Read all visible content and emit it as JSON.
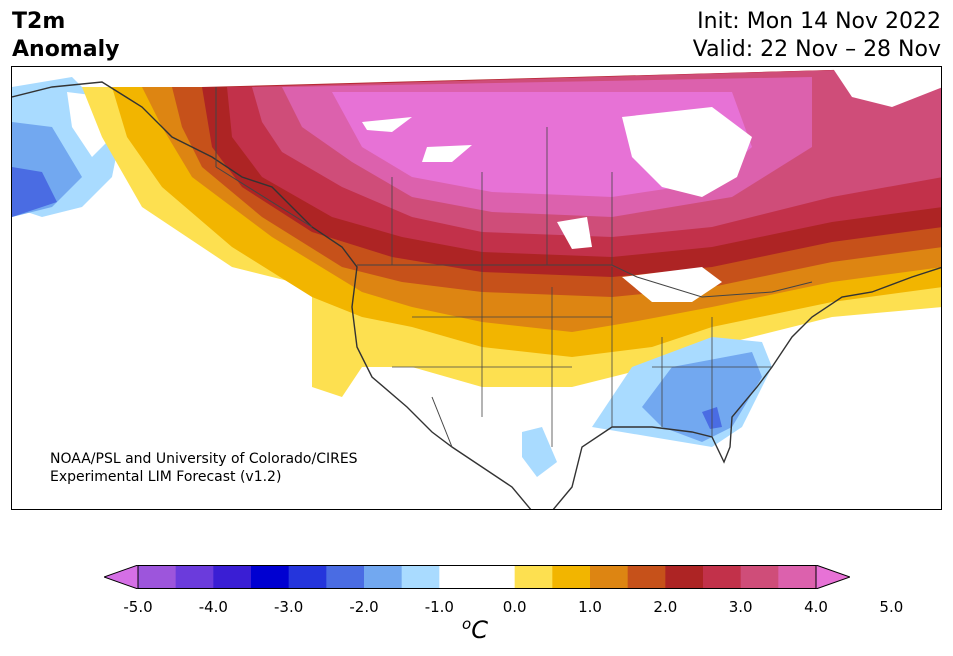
{
  "header": {
    "title_line1": "T2m",
    "title_line2": "Anomaly",
    "init": "Init: Mon 14 Nov 2022",
    "valid": "Valid: 22 Nov – 28 Nov"
  },
  "map": {
    "credit_line1": "NOAA/PSL and University of Colorado/CIRES",
    "credit_line2": "Experimental LIM Forecast (v1.2)"
  },
  "colorbar": {
    "unit_base": "C",
    "unit_sup": "o",
    "tick_labels": [
      "-5.0",
      "-4.0",
      "-3.0",
      "-2.0",
      "-1.0",
      "0.0",
      "1.0",
      "2.0",
      "3.0",
      "4.0",
      "5.0"
    ],
    "colors": [
      "#d56fe6",
      "#9d55dc",
      "#6b3bdc",
      "#3a1ed4",
      "#0000d1",
      "#2535dc",
      "#4a6ce3",
      "#72a8f0",
      "#a9dbff",
      "#ffffff",
      "#ffffff",
      "#fde050",
      "#f2b500",
      "#dd8512",
      "#c6511a",
      "#ad2424",
      "#c2314a",
      "#cf4d79",
      "#dc61ad",
      "#e772d6"
    ]
  }
}
